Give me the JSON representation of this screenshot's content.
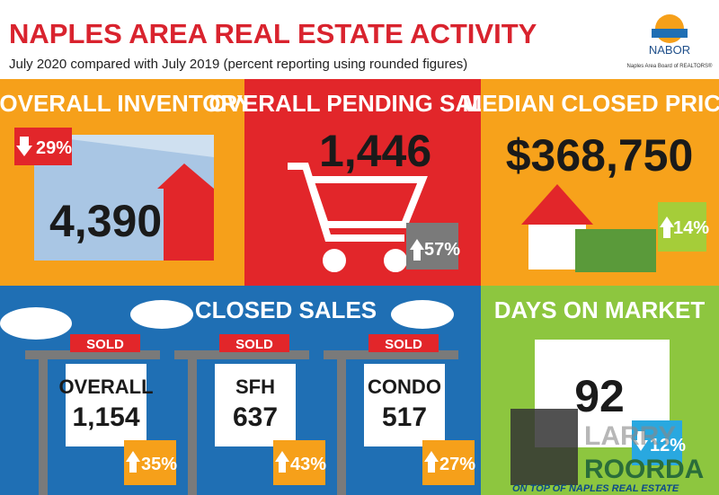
{
  "header": {
    "title": "NAPLES AREA REAL ESTATE ACTIVITY",
    "subtitle": "July 2020 compared with July 2019 (percent reporting using rounded figures)",
    "logo": "NABOR",
    "logo_caption": "Naples Area Board of REALTORS®"
  },
  "inventory": {
    "title": "OVERALL INVENTORY",
    "value": "4,390",
    "change": "29%"
  },
  "pending": {
    "title": "OVERALL PENDING SALES",
    "value": "1,446",
    "change": "57%"
  },
  "median": {
    "title": "MEDIAN CLOSED PRICE",
    "value": "$368,750",
    "change": "14%"
  },
  "closed_sales": {
    "title": "CLOSED SALES",
    "signs": [
      {
        "tag": "SOLD",
        "label": "OVERALL",
        "value": "1,154",
        "change": "35%"
      },
      {
        "tag": "SOLD",
        "label": "SFH",
        "value": "637",
        "change": "43%"
      },
      {
        "tag": "SOLD",
        "label": "CONDO",
        "value": "517",
        "change": "27%"
      }
    ]
  },
  "days": {
    "title": "DAYS ON MARKET",
    "value": "92",
    "change": "12%"
  },
  "watermark": {
    "first": "LARRY",
    "last": "ROORDA",
    "tagline": "ON TOP OF NAPLES REAL ESTATE"
  }
}
